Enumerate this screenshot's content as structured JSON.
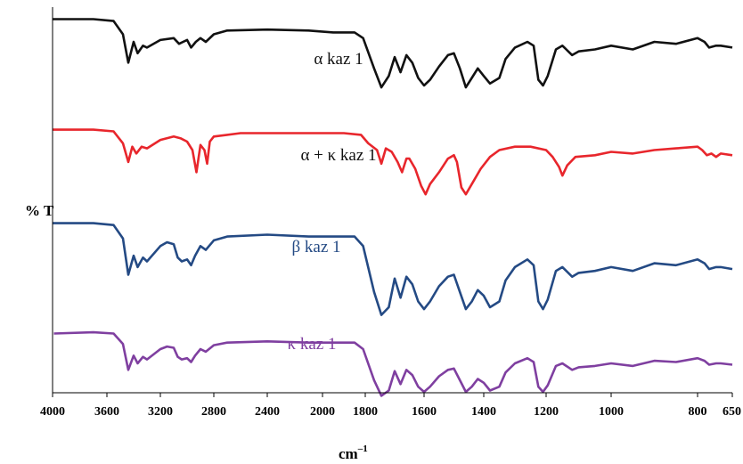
{
  "chart_data": {
    "type": "line",
    "title": "",
    "xlabel": "cm",
    "xlabel_superscript": "–1",
    "ylabel": "% T",
    "x_reversed": true,
    "xlim": [
      4000,
      650
    ],
    "ylim": [
      0,
      100
    ],
    "grid": false,
    "legend": "none",
    "xticks": [
      {
        "value": 4000,
        "label": "4000"
      },
      {
        "value": 3600,
        "label": "3600"
      },
      {
        "value": 3200,
        "label": "3200"
      },
      {
        "value": 2800,
        "label": "2800"
      },
      {
        "value": 2400,
        "label": "2400"
      },
      {
        "value": 2000,
        "label": "2000"
      },
      {
        "value": 1800,
        "label": "1800"
      },
      {
        "value": 1600,
        "label": "1600"
      },
      {
        "value": 1400,
        "label": "1400"
      },
      {
        "value": 1200,
        "label": "1200"
      },
      {
        "value": 1000,
        "label": "1000"
      },
      {
        "value": 800,
        "label": "800"
      },
      {
        "value": 650,
        "label": "650"
      }
    ],
    "series": [
      {
        "name": "α kaz 1",
        "color": "#111111",
        "points": [
          [
            4000,
            96
          ],
          [
            3700,
            96
          ],
          [
            3550,
            95
          ],
          [
            3480,
            88
          ],
          [
            3440,
            73
          ],
          [
            3400,
            84
          ],
          [
            3370,
            78
          ],
          [
            3330,
            82
          ],
          [
            3300,
            81
          ],
          [
            3200,
            85
          ],
          [
            3100,
            86
          ],
          [
            3060,
            83
          ],
          [
            3030,
            84
          ],
          [
            3000,
            85
          ],
          [
            2970,
            81
          ],
          [
            2935,
            84
          ],
          [
            2900,
            86
          ],
          [
            2860,
            84
          ],
          [
            2800,
            88
          ],
          [
            2700,
            90
          ],
          [
            2400,
            90.5
          ],
          [
            2100,
            90
          ],
          [
            1950,
            89
          ],
          [
            1850,
            89
          ],
          [
            1810,
            86
          ],
          [
            1770,
            70
          ],
          [
            1745,
            60
          ],
          [
            1720,
            66
          ],
          [
            1700,
            76
          ],
          [
            1680,
            68
          ],
          [
            1660,
            77
          ],
          [
            1640,
            73
          ],
          [
            1620,
            65
          ],
          [
            1600,
            61
          ],
          [
            1580,
            64
          ],
          [
            1550,
            71
          ],
          [
            1520,
            77
          ],
          [
            1500,
            78
          ],
          [
            1480,
            70
          ],
          [
            1460,
            60
          ],
          [
            1440,
            65
          ],
          [
            1420,
            70
          ],
          [
            1400,
            66
          ],
          [
            1380,
            62
          ],
          [
            1350,
            65
          ],
          [
            1330,
            75
          ],
          [
            1300,
            81
          ],
          [
            1260,
            84
          ],
          [
            1240,
            82
          ],
          [
            1225,
            64
          ],
          [
            1210,
            61
          ],
          [
            1195,
            66
          ],
          [
            1170,
            80
          ],
          [
            1150,
            82
          ],
          [
            1120,
            77
          ],
          [
            1100,
            79
          ],
          [
            1050,
            80
          ],
          [
            1000,
            82
          ],
          [
            950,
            80
          ],
          [
            900,
            84
          ],
          [
            850,
            83
          ],
          [
            800,
            86
          ],
          [
            770,
            84
          ],
          [
            750,
            81
          ],
          [
            720,
            82
          ],
          [
            700,
            82
          ],
          [
            650,
            81
          ]
        ]
      },
      {
        "name": "α + κ kaz 1",
        "color": "#e8262c",
        "points": [
          [
            4000,
            96
          ],
          [
            3700,
            96
          ],
          [
            3550,
            95
          ],
          [
            3480,
            88
          ],
          [
            3440,
            77
          ],
          [
            3410,
            86
          ],
          [
            3380,
            82
          ],
          [
            3340,
            86
          ],
          [
            3300,
            85
          ],
          [
            3200,
            90
          ],
          [
            3100,
            92
          ],
          [
            3050,
            91
          ],
          [
            3000,
            89
          ],
          [
            2960,
            84
          ],
          [
            2930,
            71
          ],
          [
            2900,
            87
          ],
          [
            2870,
            84
          ],
          [
            2850,
            76
          ],
          [
            2830,
            89
          ],
          [
            2800,
            92
          ],
          [
            2600,
            94
          ],
          [
            2200,
            94
          ],
          [
            1900,
            94
          ],
          [
            1820,
            93
          ],
          [
            1790,
            88
          ],
          [
            1760,
            84
          ],
          [
            1745,
            76
          ],
          [
            1730,
            85
          ],
          [
            1710,
            83
          ],
          [
            1690,
            77
          ],
          [
            1675,
            71
          ],
          [
            1660,
            79
          ],
          [
            1650,
            79
          ],
          [
            1630,
            73
          ],
          [
            1610,
            63
          ],
          [
            1595,
            58
          ],
          [
            1580,
            64
          ],
          [
            1550,
            71
          ],
          [
            1520,
            79
          ],
          [
            1500,
            81
          ],
          [
            1490,
            77
          ],
          [
            1475,
            62
          ],
          [
            1460,
            58
          ],
          [
            1440,
            64
          ],
          [
            1410,
            73
          ],
          [
            1380,
            80
          ],
          [
            1350,
            84
          ],
          [
            1300,
            86
          ],
          [
            1250,
            86
          ],
          [
            1200,
            84
          ],
          [
            1180,
            80
          ],
          [
            1160,
            74
          ],
          [
            1150,
            69
          ],
          [
            1135,
            75
          ],
          [
            1110,
            80
          ],
          [
            1050,
            81
          ],
          [
            1000,
            83
          ],
          [
            950,
            82
          ],
          [
            900,
            84
          ],
          [
            850,
            85
          ],
          [
            800,
            86
          ],
          [
            780,
            84
          ],
          [
            760,
            81
          ],
          [
            740,
            82
          ],
          [
            720,
            80
          ],
          [
            700,
            82
          ],
          [
            650,
            81
          ]
        ]
      },
      {
        "name": "β kaz 1",
        "color": "#244a84",
        "points": [
          [
            4000,
            96
          ],
          [
            3700,
            96
          ],
          [
            3550,
            95
          ],
          [
            3480,
            88
          ],
          [
            3440,
            69
          ],
          [
            3400,
            79
          ],
          [
            3370,
            73
          ],
          [
            3330,
            78
          ],
          [
            3300,
            76
          ],
          [
            3200,
            84
          ],
          [
            3150,
            86
          ],
          [
            3100,
            85
          ],
          [
            3070,
            78
          ],
          [
            3040,
            76
          ],
          [
            3000,
            77
          ],
          [
            2970,
            74
          ],
          [
            2940,
            79
          ],
          [
            2900,
            84
          ],
          [
            2860,
            82
          ],
          [
            2800,
            87
          ],
          [
            2700,
            89
          ],
          [
            2400,
            90
          ],
          [
            2100,
            89
          ],
          [
            1950,
            89
          ],
          [
            1850,
            89
          ],
          [
            1810,
            84
          ],
          [
            1770,
            60
          ],
          [
            1745,
            48
          ],
          [
            1720,
            52
          ],
          [
            1700,
            67
          ],
          [
            1680,
            57
          ],
          [
            1660,
            68
          ],
          [
            1640,
            64
          ],
          [
            1620,
            55
          ],
          [
            1600,
            51
          ],
          [
            1580,
            55
          ],
          [
            1550,
            63
          ],
          [
            1520,
            68
          ],
          [
            1500,
            69
          ],
          [
            1480,
            60
          ],
          [
            1460,
            51
          ],
          [
            1440,
            55
          ],
          [
            1420,
            61
          ],
          [
            1400,
            58
          ],
          [
            1380,
            52
          ],
          [
            1350,
            55
          ],
          [
            1330,
            66
          ],
          [
            1300,
            73
          ],
          [
            1260,
            77
          ],
          [
            1240,
            74
          ],
          [
            1225,
            55
          ],
          [
            1210,
            51
          ],
          [
            1195,
            56
          ],
          [
            1170,
            71
          ],
          [
            1150,
            73
          ],
          [
            1120,
            68
          ],
          [
            1100,
            70
          ],
          [
            1050,
            71
          ],
          [
            1000,
            73
          ],
          [
            950,
            71
          ],
          [
            900,
            75
          ],
          [
            850,
            74
          ],
          [
            800,
            77
          ],
          [
            770,
            75
          ],
          [
            750,
            72
          ],
          [
            720,
            73
          ],
          [
            700,
            73
          ],
          [
            650,
            72
          ]
        ]
      },
      {
        "name": "κ kaz 1",
        "color": "#7f3fa0",
        "points": [
          [
            3990,
            90
          ],
          [
            3700,
            91
          ],
          [
            3550,
            90
          ],
          [
            3480,
            82
          ],
          [
            3440,
            62
          ],
          [
            3400,
            73
          ],
          [
            3370,
            67
          ],
          [
            3330,
            72
          ],
          [
            3300,
            70
          ],
          [
            3200,
            78
          ],
          [
            3150,
            80
          ],
          [
            3100,
            79
          ],
          [
            3070,
            72
          ],
          [
            3040,
            70
          ],
          [
            3000,
            71
          ],
          [
            2970,
            68
          ],
          [
            2940,
            73
          ],
          [
            2900,
            78
          ],
          [
            2860,
            76
          ],
          [
            2800,
            81
          ],
          [
            2700,
            83
          ],
          [
            2400,
            84
          ],
          [
            2100,
            83
          ],
          [
            1950,
            83
          ],
          [
            1850,
            83
          ],
          [
            1810,
            78
          ],
          [
            1770,
            54
          ],
          [
            1745,
            42
          ],
          [
            1720,
            46
          ],
          [
            1700,
            61
          ],
          [
            1680,
            51
          ],
          [
            1660,
            62
          ],
          [
            1640,
            58
          ],
          [
            1620,
            49
          ],
          [
            1600,
            45
          ],
          [
            1580,
            49
          ],
          [
            1550,
            57
          ],
          [
            1520,
            62
          ],
          [
            1500,
            63
          ],
          [
            1480,
            54
          ],
          [
            1460,
            45
          ],
          [
            1440,
            49
          ],
          [
            1420,
            55
          ],
          [
            1400,
            52
          ],
          [
            1380,
            46
          ],
          [
            1350,
            49
          ],
          [
            1330,
            60
          ],
          [
            1300,
            67
          ],
          [
            1260,
            71
          ],
          [
            1240,
            68
          ],
          [
            1225,
            49
          ],
          [
            1210,
            45
          ],
          [
            1195,
            50
          ],
          [
            1170,
            65
          ],
          [
            1150,
            67
          ],
          [
            1120,
            62
          ],
          [
            1100,
            64
          ],
          [
            1050,
            65
          ],
          [
            1000,
            67
          ],
          [
            950,
            65
          ],
          [
            900,
            69
          ],
          [
            850,
            68
          ],
          [
            800,
            71
          ],
          [
            770,
            69
          ],
          [
            750,
            66
          ],
          [
            720,
            67
          ],
          [
            700,
            67
          ],
          [
            650,
            66
          ]
        ]
      }
    ]
  }
}
